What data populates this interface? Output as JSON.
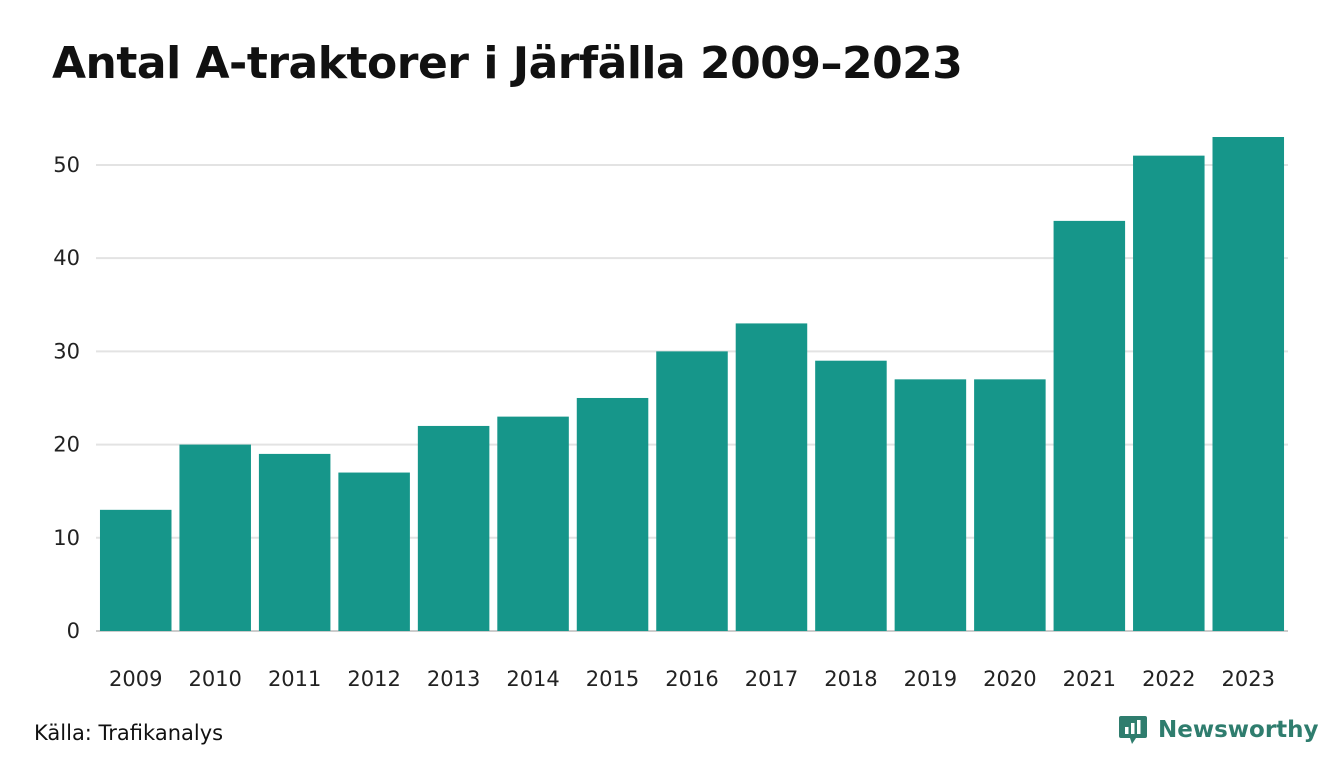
{
  "chart_data": {
    "type": "bar",
    "title": "Antal A-traktorer i Järfälla 2009–2023",
    "categories": [
      "2009",
      "2010",
      "2011",
      "2012",
      "2013",
      "2014",
      "2015",
      "2016",
      "2017",
      "2018",
      "2019",
      "2020",
      "2021",
      "2022",
      "2023"
    ],
    "values": [
      13,
      20,
      19,
      17,
      22,
      23,
      25,
      30,
      33,
      29,
      27,
      27,
      44,
      51,
      53
    ],
    "yticks": [
      0,
      10,
      20,
      30,
      40,
      50
    ],
    "ylim": [
      0,
      53
    ],
    "xlabel": "",
    "ylabel": "",
    "grid": true,
    "bar_color": "#16968a"
  },
  "footer": {
    "source": "Källa: Trafikanalys",
    "brand": "Newsworthy"
  },
  "colors": {
    "brand": "#2f7d6e",
    "grid": "#e3e3e3",
    "axis": "#cccccc"
  }
}
